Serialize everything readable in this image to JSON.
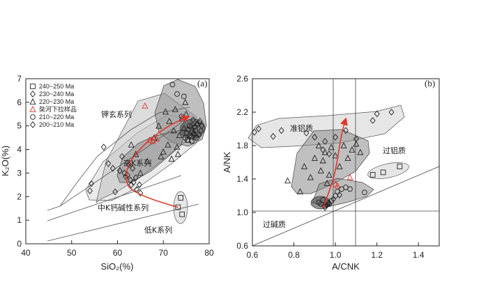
{
  "chart_data": [
    {
      "type": "scatter",
      "panel_label": "(a)",
      "xlabel": "SiO₂(%)",
      "ylabel": "K₂O(%)",
      "xlim": [
        40,
        80
      ],
      "ylim": [
        0,
        7
      ],
      "xticks": [
        40,
        50,
        60,
        70,
        80
      ],
      "yticks": [
        0,
        1,
        2,
        3,
        4,
        5,
        6,
        7
      ],
      "legend": {
        "placement": "top-left",
        "entries": [
          {
            "label": "240~250 Ma",
            "marker": "square",
            "color": "#222222"
          },
          {
            "label": "230~240 Ma",
            "marker": "diamond",
            "color": "#222222"
          },
          {
            "label": "220~230 Ma",
            "marker": "triangle",
            "color": "#222222"
          },
          {
            "label": "奘河下拉样品",
            "marker": "triangle",
            "color": "#e0362b"
          },
          {
            "label": "210~220 Ma",
            "marker": "circle",
            "color": "#222222"
          },
          {
            "label": "200~210 Ma",
            "marker": "diamond",
            "color": "#222222"
          }
        ]
      },
      "zone_labels": [
        {
          "text": "钾玄系列",
          "x": 63.5,
          "y": 5.3
        },
        {
          "text": "高K系列",
          "x": 66,
          "y": 3.45
        },
        {
          "text": "中K钙碱性系列",
          "x": 61,
          "y": 1.5
        },
        {
          "text": "低K系列",
          "x": 68.5,
          "y": 0.55
        }
      ],
      "boundaries": [
        [
          [
            45,
            1.4
          ],
          [
            48,
            1.55
          ],
          [
            68,
            4.1
          ],
          [
            75,
            4.9
          ]
        ],
        [
          [
            45,
            1.0
          ],
          [
            75,
            2.45
          ]
        ],
        [
          [
            45,
            0.15
          ],
          [
            77,
            1.65
          ]
        ],
        [
          [
            48,
            1.55
          ],
          [
            52,
            2.1
          ],
          [
            56,
            2.95
          ],
          [
            64,
            4.25
          ],
          [
            70,
            5.0
          ],
          [
            77,
            5.5
          ]
        ]
      ],
      "series": [
        {
          "name": "240~250 Ma",
          "marker": "square",
          "points": [
            [
              73.8,
              1.95
            ],
            [
              74.1,
              1.25
            ],
            [
              73.2,
              1.55
            ]
          ]
        },
        {
          "name": "230~240 Ma",
          "marker": "diamond",
          "points": [
            [
              54,
              2.25
            ],
            [
              54.3,
              2.55
            ],
            [
              57,
              4.1
            ],
            [
              58,
              3.4
            ],
            [
              59,
              3.2
            ],
            [
              59.5,
              2.2
            ],
            [
              60.5,
              3.1
            ],
            [
              61,
              3.7
            ],
            [
              61.5,
              3.0
            ],
            [
              61.8,
              2.85
            ],
            [
              62.2,
              2.9
            ],
            [
              62.5,
              3.35
            ],
            [
              62.8,
              2.7
            ],
            [
              63,
              2.5
            ],
            [
              63.3,
              3.2
            ],
            [
              63.5,
              2.6
            ],
            [
              64,
              2.8
            ],
            [
              64.2,
              2.3
            ],
            [
              64.8,
              2.5
            ],
            [
              65,
              2.15
            ]
          ]
        },
        {
          "name": "220~230 Ma",
          "marker": "triangle",
          "points": [
            [
              63,
              4.2
            ],
            [
              64,
              3.8
            ],
            [
              65,
              3.0
            ],
            [
              66.5,
              3.5
            ],
            [
              68,
              4.5
            ],
            [
              69,
              5.0
            ],
            [
              69.5,
              3.7
            ],
            [
              70,
              3.9
            ],
            [
              70.5,
              5.6
            ],
            [
              71,
              4.2
            ],
            [
              71.3,
              5.2
            ],
            [
              71.8,
              3.6
            ],
            [
              72.3,
              4.8
            ],
            [
              72.6,
              5.7
            ],
            [
              73,
              4.1
            ],
            [
              73.5,
              4.6
            ],
            [
              74,
              5.3
            ],
            [
              74.5,
              4.9
            ],
            [
              75,
              5.5
            ],
            [
              75.4,
              4.4
            ],
            [
              76,
              5.0
            ],
            [
              76.5,
              4.7
            ],
            [
              77,
              4.5
            ],
            [
              77.3,
              5.1
            ],
            [
              73.2,
              3.8
            ],
            [
              74.8,
              6.0
            ]
          ]
        },
        {
          "name": "奘河下拉样品",
          "marker": "triangle",
          "points": [
            [
              66,
              5.85
            ],
            [
              67,
              4.4
            ],
            [
              67.7,
              4.35
            ],
            [
              68.5,
              4.45
            ]
          ]
        },
        {
          "name": "210~220 Ma",
          "marker": "circle",
          "points": [
            [
              72,
              6.75
            ],
            [
              73,
              6.35
            ],
            [
              74.5,
              6.25
            ],
            [
              74,
              5.4
            ],
            [
              74.8,
              4.5
            ],
            [
              75.1,
              4.7
            ],
            [
              75.4,
              4.85
            ],
            [
              75.8,
              4.6
            ],
            [
              76.1,
              4.55
            ],
            [
              76.4,
              4.75
            ],
            [
              76.7,
              4.65
            ],
            [
              77,
              4.8
            ],
            [
              75.3,
              4.4
            ],
            [
              76.2,
              4.35
            ],
            [
              75.7,
              5.0
            ],
            [
              77.3,
              4.5
            ]
          ]
        },
        {
          "name": "200~210 Ma",
          "marker": "diamond",
          "points": [
            [
              76.8,
              4.95
            ],
            [
              77.5,
              5.05
            ],
            [
              78,
              5.2
            ],
            [
              78.2,
              4.8
            ],
            [
              76.5,
              5.25
            ],
            [
              77.8,
              4.6
            ],
            [
              78.4,
              5.0
            ]
          ]
        }
      ],
      "trend_arrow": [
        [
          73.2,
          1.55
        ],
        [
          63,
          2.1
        ],
        [
          61.5,
          2.9
        ],
        [
          63.5,
          3.8
        ],
        [
          70,
          4.9
        ],
        [
          75.5,
          5.4
        ]
      ]
    },
    {
      "type": "scatter",
      "panel_label": "(b)",
      "xlabel": "A/CNK",
      "ylabel": "A/NK",
      "xlim": [
        0.6,
        1.5
      ],
      "ylim": [
        0.6,
        2.6
      ],
      "xticks": [
        0.6,
        0.8,
        1.0,
        1.2,
        1.4
      ],
      "yticks": [
        0.6,
        1.0,
        1.4,
        1.8,
        2.2,
        2.6
      ],
      "zone_labels": [
        {
          "text": "准铝质",
          "x": 0.8,
          "y": 1.98
        },
        {
          "text": "过铝质",
          "x": 1.27,
          "y": 1.74
        },
        {
          "text": "过碱质",
          "x": 0.71,
          "y": 0.83
        }
      ],
      "series": [
        {
          "name": "240~250 Ma",
          "marker": "square",
          "points": [
            [
              1.18,
              1.45
            ],
            [
              1.23,
              1.48
            ],
            [
              1.31,
              1.55
            ]
          ]
        },
        {
          "name": "230~240 Ma",
          "marker": "diamond",
          "points": [
            [
              0.61,
              1.96
            ],
            [
              0.63,
              2.0
            ],
            [
              0.7,
              1.91
            ],
            [
              0.74,
              1.98
            ],
            [
              0.86,
              1.95
            ],
            [
              0.9,
              1.9
            ],
            [
              0.95,
              1.85
            ],
            [
              1.0,
              1.9
            ],
            [
              1.05,
              1.98
            ],
            [
              1.1,
              1.88
            ],
            [
              1.18,
              2.1
            ],
            [
              1.2,
              2.18
            ],
            [
              1.27,
              2.2
            ],
            [
              0.94,
              1.75
            ],
            [
              0.97,
              1.7
            ]
          ]
        },
        {
          "name": "220~230 Ma",
          "marker": "triangle",
          "points": [
            [
              0.77,
              1.38
            ],
            [
              0.85,
              1.55
            ],
            [
              0.88,
              1.42
            ],
            [
              0.9,
              1.65
            ],
            [
              0.92,
              1.8
            ],
            [
              0.93,
              1.5
            ],
            [
              0.94,
              1.62
            ],
            [
              0.95,
              1.72
            ],
            [
              0.96,
              1.35
            ],
            [
              0.97,
              1.45
            ],
            [
              0.98,
              1.78
            ],
            [
              1.0,
              1.68
            ],
            [
              1.02,
              1.55
            ],
            [
              1.04,
              1.8
            ],
            [
              1.06,
              1.65
            ],
            [
              1.08,
              1.75
            ],
            [
              1.1,
              1.82
            ],
            [
              1.12,
              1.72
            ],
            [
              0.83,
              1.25
            ]
          ]
        },
        {
          "name": "奘河下拉样品",
          "marker": "triangle",
          "points": [
            [
              1.0,
              1.34
            ],
            [
              1.01,
              1.32
            ],
            [
              1.07,
              1.42
            ]
          ]
        },
        {
          "name": "210~220 Ma",
          "marker": "circle",
          "points": [
            [
              0.92,
              1.12
            ],
            [
              0.93,
              1.1
            ],
            [
              0.94,
              1.15
            ],
            [
              0.95,
              1.08
            ],
            [
              0.96,
              1.12
            ],
            [
              0.97,
              1.1
            ],
            [
              0.98,
              1.14
            ],
            [
              1.0,
              1.2
            ],
            [
              1.01,
              1.25
            ],
            [
              1.03,
              1.28
            ],
            [
              1.05,
              1.3
            ],
            [
              1.07,
              1.28
            ],
            [
              1.14,
              1.24
            ]
          ]
        },
        {
          "name": "200~210 Ma",
          "marker": "diamond",
          "points": [
            [
              0.95,
              1.06
            ],
            [
              0.96,
              1.09
            ],
            [
              0.97,
              1.11
            ],
            [
              0.99,
              1.16
            ],
            [
              1.02,
              1.21
            ]
          ]
        }
      ],
      "trend_arrow": [
        [
          0.94,
          1.05
        ],
        [
          0.97,
          1.25
        ],
        [
          1.0,
          1.48
        ],
        [
          1.03,
          1.95
        ],
        [
          1.05,
          2.12
        ]
      ]
    }
  ]
}
